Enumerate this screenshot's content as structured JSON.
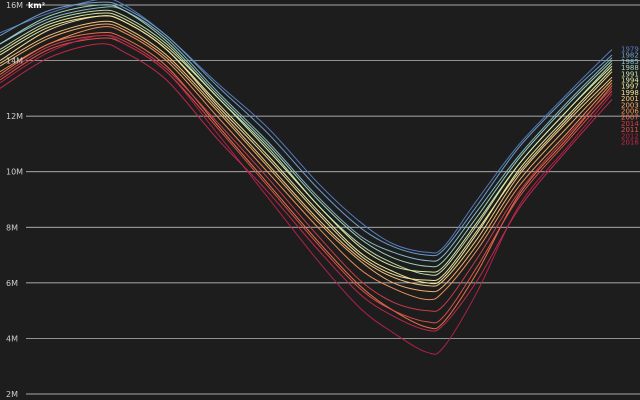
{
  "chart_data": {
    "type": "line",
    "unit": "km²",
    "y_tick_labels": [
      "2M",
      "4M",
      "6M",
      "8M",
      "10M",
      "12M",
      "14M",
      "16M"
    ],
    "y_ticks": [
      2,
      4,
      6,
      8,
      10,
      12,
      14,
      16
    ],
    "ylim": [
      2,
      16
    ],
    "x_days": [
      1,
      30,
      60,
      75,
      100,
      130,
      160,
      190,
      215,
      235,
      255,
      265,
      285,
      310,
      340,
      365
    ],
    "grid": true,
    "series": [
      {
        "name": "1979",
        "color": "#5a7fc6",
        "values": [
          15.0,
          15.7,
          16.2,
          16.0,
          14.9,
          13.2,
          11.6,
          9.6,
          8.2,
          7.4,
          7.1,
          7.3,
          9.0,
          11.0,
          12.9,
          14.4
        ]
      },
      {
        "name": "1982",
        "color": "#6fa3d0",
        "values": [
          14.9,
          15.8,
          16.1,
          15.9,
          14.9,
          13.1,
          11.4,
          9.4,
          8.0,
          7.3,
          7.0,
          7.2,
          8.8,
          10.9,
          12.8,
          14.2
        ]
      },
      {
        "name": "1985",
        "color": "#89c2cf",
        "values": [
          14.6,
          15.5,
          15.9,
          15.8,
          14.8,
          12.9,
          11.1,
          9.1,
          7.7,
          7.1,
          6.8,
          7.0,
          8.6,
          10.6,
          12.6,
          14.1
        ]
      },
      {
        "name": "1988",
        "color": "#a4d8c2",
        "values": [
          14.6,
          15.6,
          16.0,
          15.8,
          14.7,
          12.8,
          11.0,
          9.0,
          7.6,
          6.9,
          6.6,
          6.8,
          8.4,
          10.5,
          12.5,
          14.0
        ]
      },
      {
        "name": "1991",
        "color": "#c2e5b0",
        "values": [
          14.4,
          15.4,
          15.8,
          15.6,
          14.6,
          12.7,
          10.9,
          8.8,
          7.4,
          6.7,
          6.3,
          6.5,
          8.1,
          10.3,
          12.3,
          13.9
        ]
      },
      {
        "name": "1994",
        "color": "#dff0a6",
        "values": [
          14.3,
          15.3,
          15.7,
          15.5,
          14.5,
          12.7,
          10.8,
          8.8,
          7.3,
          6.6,
          6.4,
          6.6,
          8.2,
          10.3,
          12.3,
          13.8
        ]
      },
      {
        "name": "1997",
        "color": "#f3f2a6",
        "values": [
          14.2,
          15.2,
          15.6,
          15.4,
          14.4,
          12.5,
          10.6,
          8.6,
          7.1,
          6.4,
          6.0,
          6.2,
          7.8,
          10.1,
          12.1,
          13.7
        ]
      },
      {
        "name": "1998",
        "color": "#fbe59a",
        "values": [
          14.0,
          15.1,
          15.6,
          15.4,
          14.4,
          12.4,
          10.5,
          8.5,
          7.0,
          6.3,
          6.1,
          6.3,
          7.9,
          10.0,
          12.0,
          13.6
        ]
      },
      {
        "name": "2001",
        "color": "#fdd083",
        "values": [
          13.9,
          14.9,
          15.4,
          15.2,
          14.2,
          12.3,
          10.3,
          8.3,
          6.9,
          6.2,
          5.9,
          6.1,
          7.6,
          9.9,
          11.9,
          13.4
        ]
      },
      {
        "name": "2003",
        "color": "#fdb66d",
        "values": [
          13.8,
          14.8,
          15.3,
          15.1,
          14.1,
          12.2,
          10.2,
          8.2,
          6.8,
          6.0,
          5.7,
          5.9,
          7.4,
          9.7,
          11.7,
          13.3
        ]
      },
      {
        "name": "2006",
        "color": "#f99559",
        "values": [
          13.6,
          14.6,
          15.2,
          15.0,
          14.0,
          12.0,
          10.0,
          8.0,
          6.5,
          5.8,
          5.4,
          5.7,
          7.2,
          9.5,
          11.5,
          13.2
        ]
      },
      {
        "name": "2007",
        "color": "#f2754b",
        "values": [
          13.5,
          14.6,
          15.0,
          14.8,
          13.8,
          11.7,
          9.6,
          7.5,
          5.9,
          5.0,
          4.4,
          4.6,
          6.4,
          9.2,
          11.3,
          13.1
        ]
      },
      {
        "name": "2011",
        "color": "#e5534a",
        "values": [
          13.3,
          14.4,
          14.8,
          14.6,
          13.6,
          11.6,
          9.5,
          7.4,
          5.8,
          5.0,
          4.6,
          4.8,
          6.6,
          9.1,
          11.2,
          12.9
        ]
      },
      {
        "name": "2014",
        "color": "#d03e4e",
        "values": [
          13.4,
          14.5,
          14.9,
          14.7,
          13.7,
          11.8,
          9.8,
          7.7,
          6.1,
          5.3,
          5.0,
          5.2,
          6.9,
          9.3,
          11.4,
          13.0
        ]
      },
      {
        "name": "2012",
        "color": "#b8224a",
        "values": [
          13.2,
          14.3,
          14.9,
          14.6,
          13.6,
          11.4,
          9.1,
          6.8,
          5.1,
          4.2,
          3.5,
          3.7,
          5.7,
          8.8,
          11.0,
          12.8
        ]
      },
      {
        "name": "2016",
        "color": "#c5284f",
        "values": [
          13.0,
          14.1,
          14.6,
          14.3,
          13.3,
          11.2,
          9.3,
          7.2,
          5.6,
          4.8,
          4.3,
          4.5,
          6.1,
          8.7,
          10.9,
          12.6
        ]
      }
    ]
  }
}
